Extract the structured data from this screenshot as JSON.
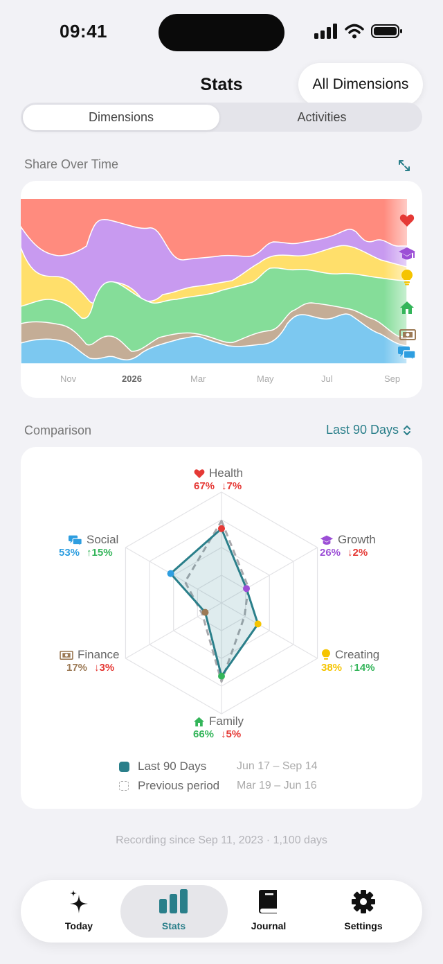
{
  "status_bar": {
    "time": "09:41"
  },
  "header": {
    "title": "Stats",
    "filter_button": "All Dimensions"
  },
  "segmented": {
    "tabs": [
      "Dimensions",
      "Activities"
    ],
    "selected": "Dimensions"
  },
  "share_over_time": {
    "label": "Share Over Time",
    "months": [
      "Nov",
      "2026",
      "Mar",
      "May",
      "Jul",
      "Sep"
    ],
    "icons": [
      "heart-icon",
      "graduation-cap-icon",
      "lightbulb-icon",
      "home-icon",
      "banknote-icon",
      "chat-bubbles-icon"
    ],
    "colors": {
      "health": "#ff8b7e",
      "growth": "#c89af0",
      "creating": "#ffdf6b",
      "family": "#85dd99",
      "finance": "#c4ad96",
      "social": "#7cc8f0"
    }
  },
  "comparison": {
    "label": "Comparison",
    "range": "Last 90 Days",
    "dimensions": [
      {
        "name": "Health",
        "pct": "67%",
        "change": "↓7%",
        "icon": "heart-icon",
        "color": "#e53935",
        "value": 0.67,
        "prev": 0.74
      },
      {
        "name": "Growth",
        "pct": "26%",
        "change": "↓2%",
        "icon": "graduation-cap-icon",
        "color": "#9c4fd6",
        "value": 0.26,
        "prev": 0.28
      },
      {
        "name": "Creating",
        "pct": "38%",
        "change": "↑14%",
        "icon": "lightbulb-icon",
        "color": "#f5c400",
        "value": 0.38,
        "prev": 0.24
      },
      {
        "name": "Family",
        "pct": "66%",
        "change": "↓5%",
        "icon": "home-icon",
        "color": "#34b55a",
        "value": 0.66,
        "prev": 0.71
      },
      {
        "name": "Finance",
        "pct": "17%",
        "change": "↓3%",
        "icon": "banknote-icon",
        "color": "#9c7a56",
        "value": 0.17,
        "prev": 0.2
      },
      {
        "name": "Social",
        "pct": "53%",
        "change": "↑15%",
        "icon": "chat-bubbles-icon",
        "color": "#2e9ee0",
        "value": 0.53,
        "prev": 0.38
      }
    ],
    "legend": [
      {
        "label": "Last 90 Days",
        "dates": "Jun 17 – Sep 14"
      },
      {
        "label": "Previous period",
        "dates": "Mar 19 – Jun 16"
      }
    ]
  },
  "footer_note": "Recording since Sep 11, 2023 · 1,100 days",
  "tabbar": {
    "tabs": [
      {
        "label": "Today",
        "icon": "sparkles-icon"
      },
      {
        "label": "Stats",
        "icon": "bar-chart-icon"
      },
      {
        "label": "Journal",
        "icon": "book-icon"
      },
      {
        "label": "Settings",
        "icon": "gear-icon"
      }
    ],
    "selected": "Stats"
  },
  "colors": {
    "accent": "#2a7f8a",
    "down": "#e53935",
    "up": "#34b55a"
  }
}
